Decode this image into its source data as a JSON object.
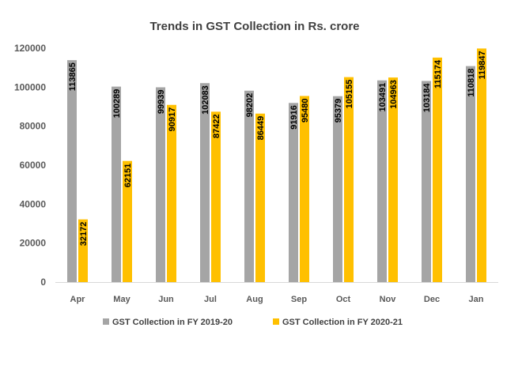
{
  "chart_data": {
    "type": "bar",
    "title": "Trends in GST Collection in Rs. crore",
    "xlabel": "",
    "ylabel": "",
    "ylim": [
      0,
      120000
    ],
    "yticks": [
      0,
      20000,
      40000,
      60000,
      80000,
      100000,
      120000
    ],
    "grid": false,
    "legend_position": "bottom",
    "categories": [
      "Apr",
      "May",
      "Jun",
      "Jul",
      "Aug",
      "Sep",
      "Oct",
      "Nov",
      "Dec",
      "Jan"
    ],
    "series": [
      {
        "name": "GST Collection in FY 2019-20",
        "color": "#a5a5a5",
        "values": [
          113865,
          100289,
          99939,
          102083,
          98202,
          91916,
          95379,
          103491,
          103184,
          110818
        ]
      },
      {
        "name": "GST Collection in FY 2020-21",
        "color": "#ffc000",
        "values": [
          32172,
          62151,
          90917,
          87422,
          86449,
          95480,
          105155,
          104963,
          115174,
          119847
        ]
      }
    ]
  }
}
